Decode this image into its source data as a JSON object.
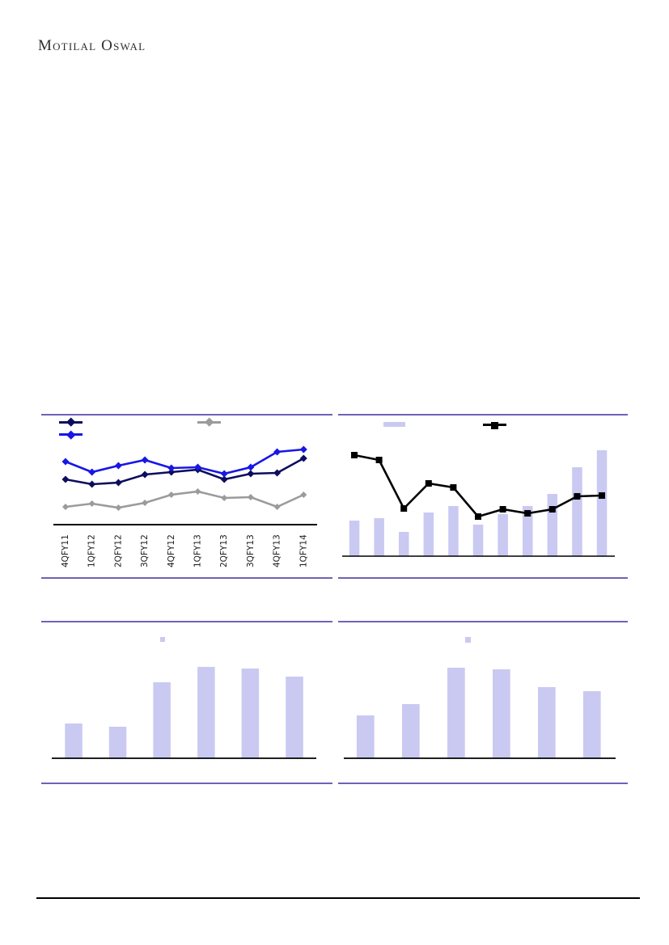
{
  "logo": {
    "text": "Motilal Oswal"
  },
  "colors": {
    "page_bg": "#ffffff",
    "panel_border": "#6e62b8",
    "footer_rule": "#000000",
    "axis": "#000000",
    "navy": "#0d0d5e",
    "blue": "#1717e6",
    "gray": "#9b9b9b",
    "bar": "#c9c9f2",
    "line_black": "#000000",
    "label_text": "#1a1a1a",
    "logo_text": "#2d2d2d"
  },
  "chart_data": [
    {
      "id": "top-left-line-chart",
      "type": "line",
      "categories": [
        "4QFY11",
        "1QFY12",
        "2QFY12",
        "3QFY12",
        "4QFY12",
        "1QFY13",
        "2QFY13",
        "3QFY13",
        "4QFY13",
        "1QFY14"
      ],
      "value_scale": "relative-pixels-above-baseline (axis unlabeled)",
      "series": [
        {
          "name": "series-dark-navy",
          "color_key": "navy",
          "marker": "diamond",
          "marker_size": 4.5,
          "values": [
            56,
            50,
            52,
            62,
            65,
            68,
            56,
            63,
            64,
            82
          ]
        },
        {
          "name": "series-bright-blue",
          "color_key": "blue",
          "marker": "diamond",
          "marker_size": 4.5,
          "values": [
            78,
            65,
            73,
            80,
            70,
            71,
            63,
            71,
            90,
            93
          ]
        },
        {
          "name": "series-gray",
          "color_key": "gray",
          "marker": "diamond",
          "marker_size": 4,
          "values": [
            22,
            26,
            21,
            27,
            37,
            41,
            33,
            34,
            22,
            37
          ]
        }
      ],
      "legend": [
        {
          "swatch": "navy-diamond-line",
          "label": ""
        },
        {
          "swatch": "gray-diamond-line",
          "label": ""
        },
        {
          "swatch": "blue-diamond-line",
          "label": ""
        }
      ],
      "grid": "off",
      "legend_position": "top"
    },
    {
      "id": "top-right-bar-line-chart",
      "type": "bar+line",
      "x_count": 11,
      "value_scale": "relative-pixels-above-baseline (axis unlabeled)",
      "bars": [
        44,
        47,
        30,
        54,
        62,
        39,
        52,
        62,
        77,
        110,
        131
      ],
      "series": [
        {
          "name": "series-black-line",
          "color_key": "line_black",
          "marker": "square",
          "values": [
            125,
            119,
            59,
            90,
            85,
            49,
            58,
            53,
            58,
            74,
            75
          ]
        }
      ],
      "legend": [
        {
          "swatch": "lavender-bar",
          "label": ""
        },
        {
          "swatch": "black-square-line",
          "label": ""
        }
      ],
      "grid": "off",
      "legend_position": "top"
    },
    {
      "id": "bottom-left-bar-chart",
      "type": "bar",
      "x_count": 6,
      "value_scale": "relative-pixels-above-baseline (axis unlabeled)",
      "bars": [
        43,
        39,
        94,
        113,
        111,
        101
      ],
      "legend": [
        {
          "swatch": "lavender-bar",
          "label": ""
        }
      ],
      "grid": "off",
      "legend_position": "top"
    },
    {
      "id": "bottom-right-bar-chart",
      "type": "bar",
      "x_count": 6,
      "value_scale": "relative-pixels-above-baseline (axis unlabeled)",
      "bars": [
        53,
        67,
        112,
        110,
        88,
        83
      ],
      "legend": [
        {
          "swatch": "lavender-bar",
          "label": ""
        }
      ],
      "grid": "off",
      "legend_position": "top"
    }
  ]
}
